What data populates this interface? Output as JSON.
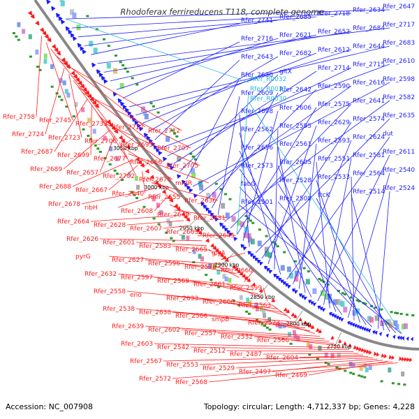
{
  "title": "Rhodoferax ferrireducens T118, complete genome",
  "footer": {
    "accession": "Accession: NC_007908",
    "summary": "Topology: circular; Length: 4,712,337 bp; Genes: 4,228"
  },
  "colors": {
    "forward": "#1a1aff",
    "reverse": "#ff1a1a",
    "rna": "#22bbdd",
    "backbone": "#888888",
    "tick": "#2a9a2a"
  },
  "map": {
    "ticks": [
      "3050 kbp",
      "3000 kbp",
      "2950 kbp",
      "2900 kbp",
      "2850 kbp",
      "2800 kbp",
      "2750 kbp"
    ],
    "blue_labels": [
      "Rfer_2647",
      "Rfer_2634",
      "Rfer_2718",
      "Rfer_2685",
      "Rfer_2741",
      "Rfer_2717",
      "Rfer_2684",
      "Rfer_2652",
      "Rfer_2621",
      "Rfer_2716",
      "Rfer_2683",
      "Rfer_2644",
      "Rfer_2612",
      "Rfer_2682",
      "Rfer_2643",
      "Rfer_2610",
      "Rfer_2715",
      "Rfer_2714",
      "gltX",
      "Rfer_2630",
      "Rfer_2598",
      "Rfer_2616",
      "Rfer_2590",
      "Rfer_2642",
      "Rfer_2609",
      "Rfer_2582",
      "Rfer_2641",
      "Rfer_2575",
      "Rfer_2606",
      "Rfer_2698",
      "Rfer_2635",
      "Rfer_2574",
      "Rfer_2629",
      "Rfer_2595",
      "Rfer_2562",
      "dut",
      "Rfer_2624",
      "Rfer_2593",
      "Rfer_2561",
      "Rfer_2656",
      "Rfer_2611",
      "Rfer_2581",
      "Rfer_2551",
      "Rfer_2605",
      "Rfer_2573",
      "Rfer_2540",
      "Rfer_2564",
      "Rfer_2533",
      "Rfer_2528",
      "fabG",
      "Rfer_2524",
      "Rfer_2514",
      "frcK",
      "Rfer_2508",
      "Rfer_2501"
    ],
    "cyan_labels": [
      "Rfer_R0032",
      "Rfer_R0031",
      "Rfer_R0030"
    ],
    "red_labels": [
      "Rfer_2758",
      "Rfer_2745",
      "Rfer_2733",
      "Rfer_2727",
      "Rfer_2712",
      "Rfer_2724",
      "Rfer_2723",
      "Rfer_2706",
      "Rfer_2693",
      "Rfer_2707",
      "Rfer_2687",
      "Rfer_2699",
      "Rfer_2677",
      "Rfer_2666",
      "Rfer_2705",
      "Rfer_2689",
      "Rfer_2657",
      "Rfer_2702",
      "Rfer_2676",
      "mrdR",
      "Rfer_2688",
      "Rfer_2667",
      "Rfer_2640",
      "Rfer_2655",
      "Rfer_2636",
      "Rfer_2678",
      "ribH",
      "Rfer_2608",
      "Rfer_2649",
      "Rfer_2631",
      "Rfer_2664",
      "Rfer_2628",
      "Rfer_2607",
      "Rfer_2663",
      "Rfer_2645",
      "Rfer_2626",
      "Rfer_2601",
      "Rfer_2583",
      "Rfer_2665",
      "glyA",
      "pyrG",
      "Rfer_2627",
      "Rfer_2596",
      "Rfer_2578",
      "Rfer_2660",
      "Rfer_2632",
      "Rfer_2597",
      "Rfer_2569",
      "Rfer_2661",
      "Rfer_2599",
      "Rfer_2558",
      "eno",
      "Rfer_2633",
      "Rfer_2600",
      "Rfer_2563",
      "Rfer_2538",
      "Rfer_2638",
      "Rfer_2566",
      "smpB",
      "Rfer_2523",
      "Rfer_2639",
      "Rfer_2602",
      "Rfer_2557",
      "Rfer_2532",
      "Rfer_2506",
      "Rfer_2603",
      "Rfer_2542",
      "Rfer_2512",
      "Rfer_2487",
      "Rfer_2604",
      "Rfer_2567",
      "Rfer_2553",
      "Rfer_2529",
      "Rfer_2497",
      "Rfer_2469",
      "Rfer_2572",
      "Rfer_2568"
    ]
  }
}
